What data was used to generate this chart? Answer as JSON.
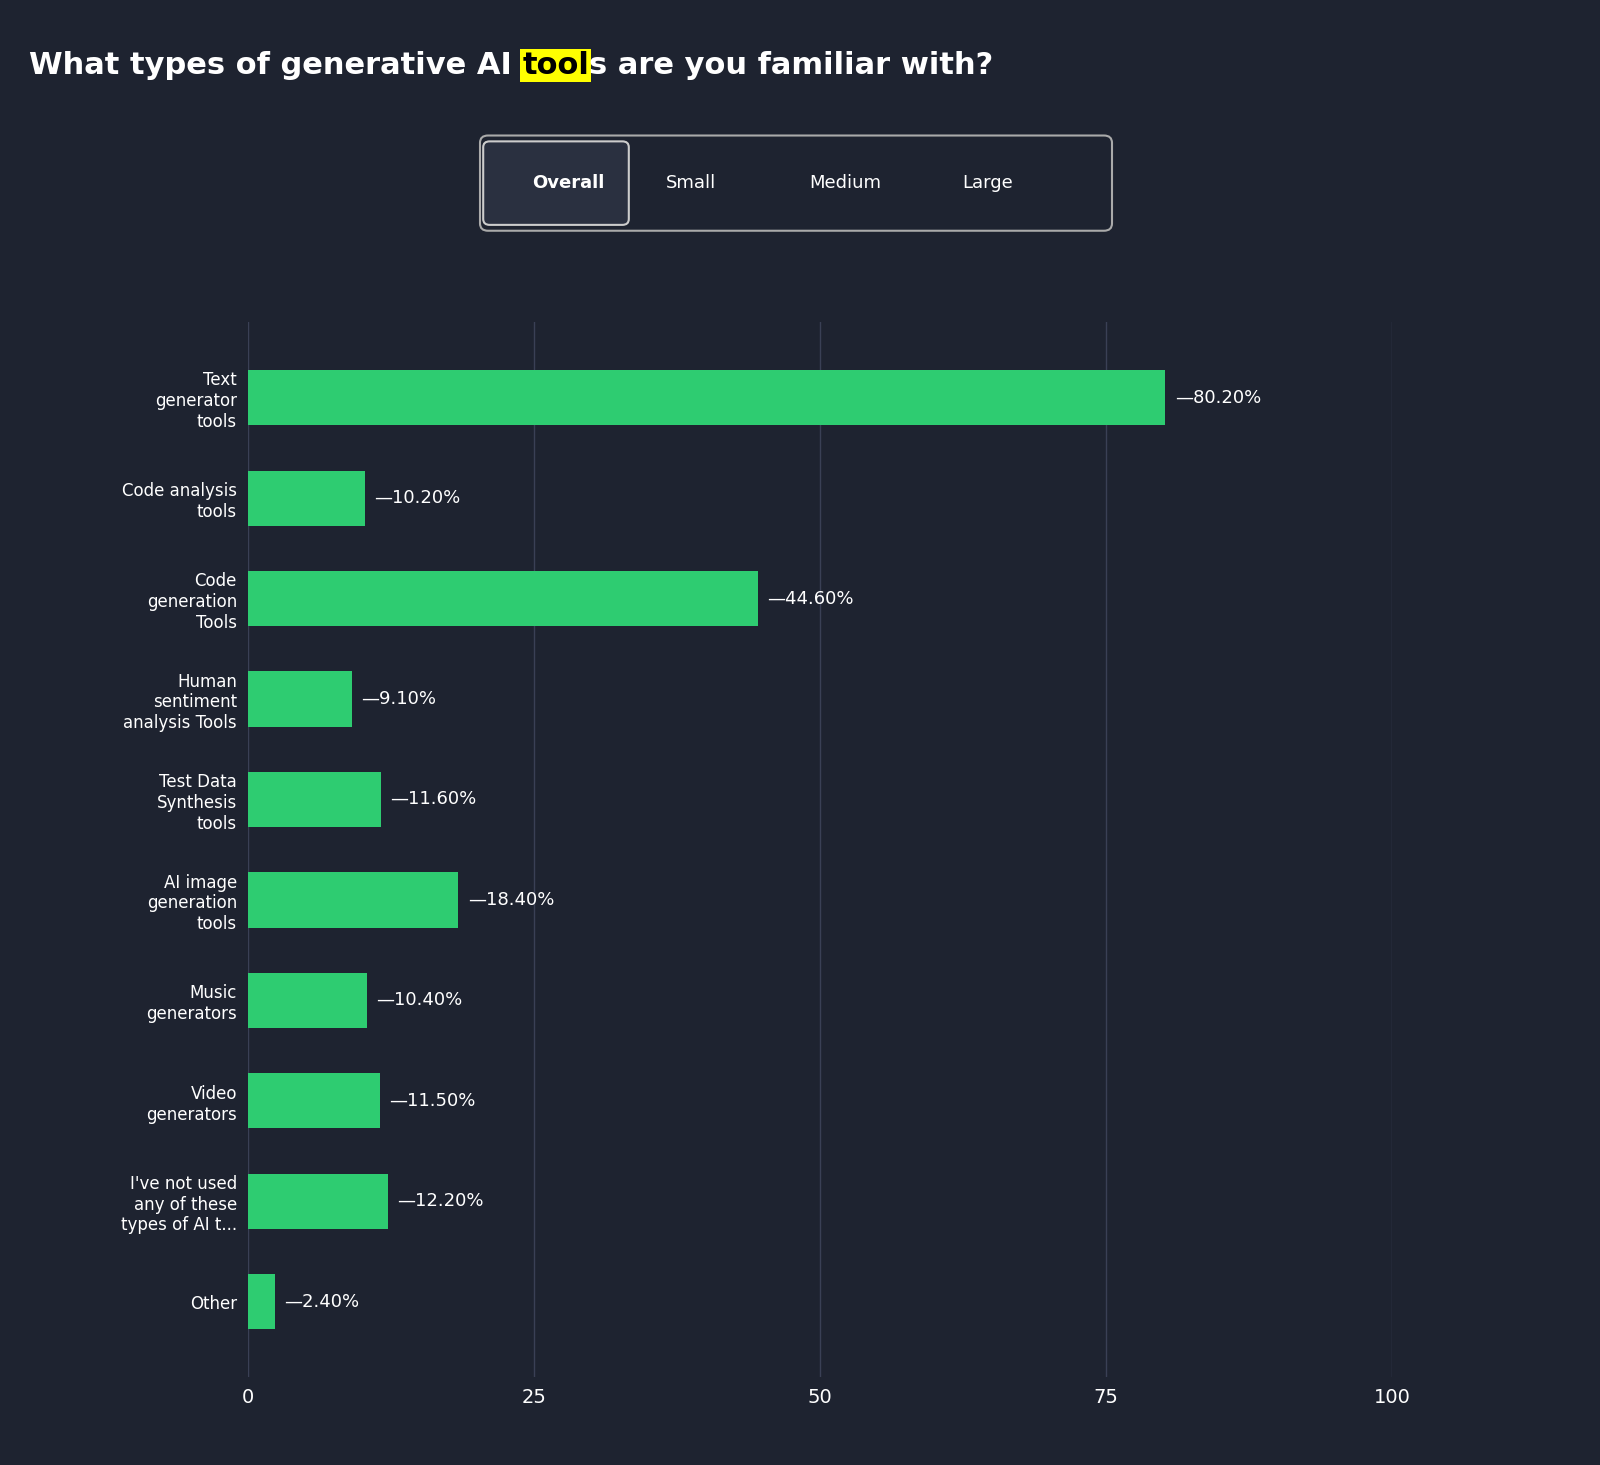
{
  "title_before_highlight": "What types of generative AI ",
  "title_highlight": "tool",
  "title_after_highlight": "s are you familiar with?",
  "highlight_color": "#FFFF00",
  "background_color": "#1e2330",
  "bar_color": "#2ecc71",
  "text_color": "#ffffff",
  "grid_color": "#3a4055",
  "categories": [
    "Text\ngenerator\ntools",
    "Code analysis\ntools",
    "Code\ngeneration\nTools",
    "Human\nsentiment\nanalysis Tools",
    "Test Data\nSynthesis\ntools",
    "AI image\ngeneration\ntools",
    "Music\ngenerators",
    "Video\ngenerators",
    "I've not used\nany of these\ntypes of AI t...",
    "Other"
  ],
  "values": [
    80.2,
    10.2,
    44.6,
    9.1,
    11.6,
    18.4,
    10.4,
    11.5,
    12.2,
    2.4
  ],
  "labels": [
    "80.20%",
    "10.20%",
    "44.60%",
    "9.10%",
    "11.60%",
    "18.40%",
    "10.40%",
    "11.50%",
    "12.20%",
    "2.40%"
  ],
  "tab_labels": [
    "Overall",
    "Small",
    "Medium",
    "Large"
  ],
  "xlim": [
    0,
    100
  ],
  "xticks": [
    0,
    25,
    50,
    75,
    100
  ],
  "figsize": [
    16.0,
    14.65
  ],
  "dpi": 100
}
